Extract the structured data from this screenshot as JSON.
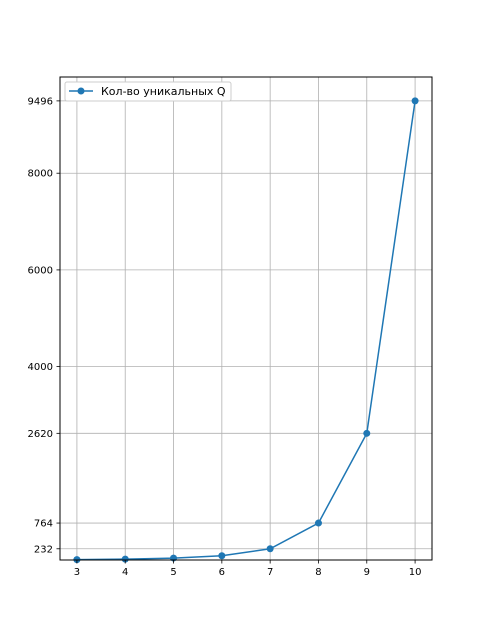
{
  "chart_data": {
    "type": "line",
    "x": [
      3,
      4,
      5,
      6,
      7,
      8,
      9,
      10
    ],
    "series": [
      {
        "name": "Кол-во уникальных Q",
        "values": [
          8,
          18,
          40,
          88,
          232,
          764,
          2620,
          9496
        ],
        "color": "#1f77b4",
        "marker": "circle"
      }
    ],
    "xticks": [
      3,
      4,
      5,
      6,
      7,
      8,
      9,
      10
    ],
    "yticks": [
      232,
      764,
      2620,
      4000,
      6000,
      8000,
      9496
    ],
    "xlim": [
      2.65,
      10.35
    ],
    "ylim": [
      0,
      9990
    ],
    "grid": true,
    "legend_position": "upper-left",
    "title": "",
    "xlabel": "",
    "ylabel": ""
  }
}
